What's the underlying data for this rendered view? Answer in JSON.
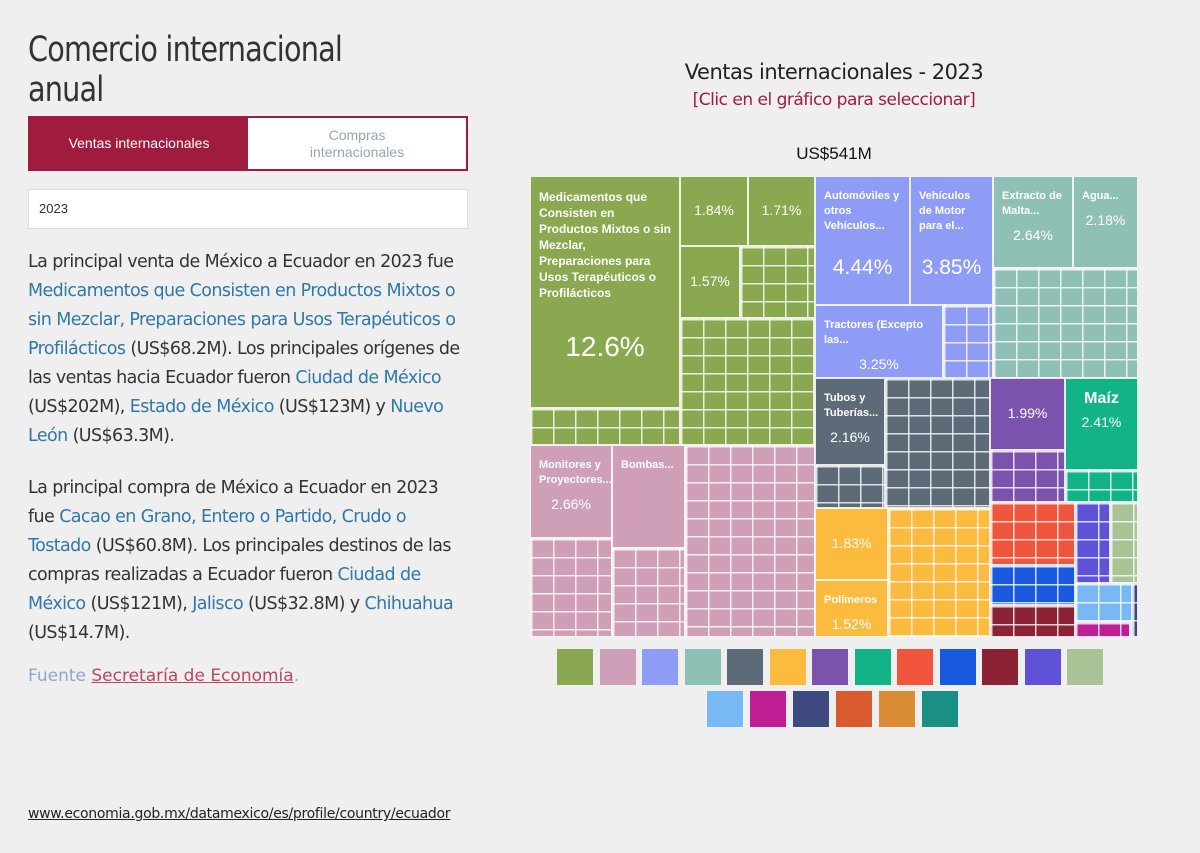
{
  "page_title": "Comercio internacional anual",
  "tabs": [
    {
      "label": "Ventas internacionales"
    },
    {
      "label": "Compras internacionales"
    }
  ],
  "year_select": "2023",
  "para1": {
    "t1": "La principal venta de México a Ecuador en 2023 fue ",
    "l1": "Medicamentos que Consisten en Productos Mixtos o sin Mezclar, Preparaciones para Usos Terapéuticos o Profilácticos",
    "t2": " (US$68.2M). Los principales orígenes de las ventas hacia Ecuador fueron ",
    "l2": "Ciudad de México",
    "t3": " (US$202M), ",
    "l3": "Estado de México",
    "t4": " (US$123M) y ",
    "l4": "Nuevo León",
    "t5": " (US$63.3M)."
  },
  "para2": {
    "t1": "La principal compra de México a Ecuador en 2023 fue ",
    "l1": "Cacao en Grano, Entero o Partido, Crudo o Tostado",
    "t2": " (US$60.8M). Los principales destinos de las compras realizadas a Ecuador fueron ",
    "l2": "Ciudad de México",
    "t3": " (US$121M), ",
    "l3": "Jalisco",
    "t4": " (US$32.8M) y ",
    "l4": "Chihuahua",
    "t5": " (US$14.7M)."
  },
  "source": {
    "label": "Fuente ",
    "link": "Secretaría de Economía",
    "end": "."
  },
  "url": "www.economia.gob.mx/datamexico/es/profile/country/ecuador",
  "chart_data": {
    "type": "treemap",
    "title": "Ventas internacionales - 2023",
    "subtitle": "[Clic en el gráfico para seleccionar]",
    "total": "US$541M",
    "tiles": [
      {
        "label": "Medicamentos que Consisten en Productos Mixtos o sin Mezclar, Preparaciones para Usos Terapéuticos o Profilácticos",
        "share": "12.6%",
        "color": "#8aa84f"
      },
      {
        "label": "",
        "share": "1.84%",
        "color": "#8aa84f"
      },
      {
        "label": "",
        "share": "1.71%",
        "color": "#8aa84f"
      },
      {
        "label": "",
        "share": "1.57%",
        "color": "#8aa84f"
      },
      {
        "label": "Automóviles y otros Vehículos...",
        "share": "4.44%",
        "color": "#8f9cf5"
      },
      {
        "label": "Vehículos de Motor para el...",
        "share": "3.85%",
        "color": "#8f9cf5"
      },
      {
        "label": "Tractores (Excepto las...",
        "share": "3.25%",
        "color": "#8f9cf5"
      },
      {
        "label": "Extracto de Malta...",
        "share": "2.64%",
        "color": "#8fc0b5"
      },
      {
        "label": "Agua...",
        "share": "2.18%",
        "color": "#8fc0b5"
      },
      {
        "label": "Tubos y Tuberías...",
        "share": "2.16%",
        "color": "#5d6b78"
      },
      {
        "label": "",
        "share": "1.99%",
        "color": "#7b52ac"
      },
      {
        "label": "Maíz",
        "share": "2.41%",
        "color": "#12b386"
      },
      {
        "label": "Monitores y Proyectores...",
        "share": "2.66%",
        "color": "#cf9fb8"
      },
      {
        "label": "Bombas...",
        "share": "",
        "color": "#cf9fb8"
      },
      {
        "label": "",
        "share": "1.83%",
        "color": "#fbbb3f"
      },
      {
        "label": "Polímeros",
        "share": "1.52%",
        "color": "#fbbb3f"
      }
    ],
    "legend_colors": [
      "#8aa84f",
      "#cf9fb8",
      "#8f9cf5",
      "#8fc0b5",
      "#5d6b78",
      "#fbbb3f",
      "#7b52ac",
      "#12b386",
      "#f0553e",
      "#1859e0",
      "#8b2335",
      "#5f52d8",
      "#a8c496",
      "#78b8f5",
      "#c01e95",
      "#3e4a80",
      "#d85a2e",
      "#d98c35",
      "#1a8f86"
    ]
  }
}
